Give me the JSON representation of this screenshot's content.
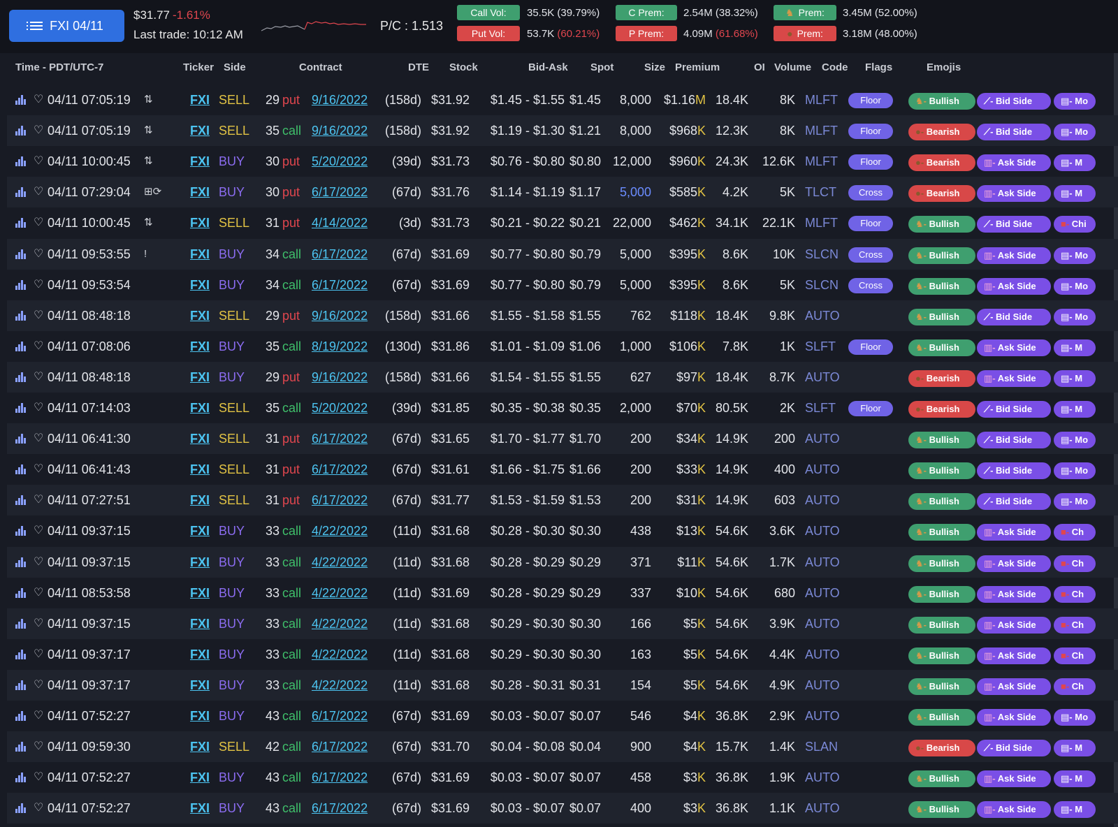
{
  "header": {
    "symbol_button": "FXI 04/11",
    "price": "$31.77",
    "change": "-1.61%",
    "last_trade": "Last trade: 10:12 AM",
    "pc_ratio": "P/C : 1.513",
    "call_vol_label": "Call Vol:",
    "call_vol_value": "35.5K (39.79%)",
    "put_vol_label": "Put Vol:",
    "put_vol_value": "53.7K",
    "put_vol_pct": "(60.21%)",
    "c_prem_label": "C Prem:",
    "c_prem_value": "2.54M (38.32%)",
    "p_prem_label": "P Prem:",
    "p_prem_value": "4.09M",
    "p_prem_pct": "(61.68%)",
    "bull_prem_label": "Prem:",
    "bull_prem_value": "3.45M (52.00%)",
    "bear_prem_label": "Prem:",
    "bear_prem_value": "3.18M (48.00%)"
  },
  "columns": {
    "time": "Time - PDT/UTC-7",
    "ticker": "Ticker",
    "side": "Side",
    "contract": "Contract",
    "dte": "DTE",
    "stock": "Stock",
    "bid_ask": "Bid-Ask",
    "spot": "Spot",
    "size": "Size",
    "premium": "Premium",
    "oi": "OI",
    "volume": "Volume",
    "code": "Code",
    "flags": "Flags",
    "emojis": "Emojis"
  },
  "rows": [
    {
      "time": "04/11 07:05:19",
      "tflag": "⇅",
      "ticker": "FXI",
      "side": "SELL",
      "strike": "29",
      "type": "put",
      "exp": "9/16/2022",
      "dte": "(158d)",
      "stock": "$31.92",
      "bid_ask": "$1.45 - $1.55",
      "spot": "$1.45",
      "size": "8,000",
      "prem": "$1.16",
      "prem_unit": "M",
      "oi": "18.4K",
      "vol": "8K",
      "code": "MLFT",
      "flag": "Floor",
      "sentiment": "Bullish",
      "side_tag": "Bid Side",
      "more": "Mo"
    },
    {
      "time": "04/11 07:05:19",
      "tflag": "⇅",
      "ticker": "FXI",
      "side": "SELL",
      "strike": "35",
      "type": "call",
      "exp": "9/16/2022",
      "dte": "(158d)",
      "stock": "$31.92",
      "bid_ask": "$1.19 - $1.30",
      "spot": "$1.21",
      "size": "8,000",
      "prem": "$968",
      "prem_unit": "K",
      "oi": "12.3K",
      "vol": "8K",
      "code": "MLFT",
      "flag": "Floor",
      "sentiment": "Bearish",
      "side_tag": "Bid Side",
      "more": "Mo"
    },
    {
      "time": "04/11 10:00:45",
      "tflag": "⇅",
      "ticker": "FXI",
      "side": "BUY",
      "strike": "30",
      "type": "put",
      "exp": "5/20/2022",
      "dte": "(39d)",
      "stock": "$31.73",
      "bid_ask": "$0.76 - $0.80",
      "spot": "$0.80",
      "size": "12,000",
      "prem": "$960",
      "prem_unit": "K",
      "oi": "24.3K",
      "vol": "12.6K",
      "code": "MLFT",
      "flag": "Floor",
      "sentiment": "Bearish",
      "side_tag": "Ask Side",
      "more": "M"
    },
    {
      "time": "04/11 07:29:04",
      "tflag": "⊞⟳",
      "ticker": "FXI",
      "side": "BUY",
      "strike": "30",
      "type": "put",
      "exp": "6/17/2022",
      "dte": "(67d)",
      "stock": "$31.76",
      "bid_ask": "$1.14 - $1.19",
      "spot": "$1.17",
      "size": "5,000",
      "size_hi": true,
      "prem": "$585",
      "prem_unit": "K",
      "oi": "4.2K",
      "vol": "5K",
      "code": "TLCT",
      "flag": "Cross",
      "sentiment": "Bearish",
      "side_tag": "Ask Side",
      "more": "M"
    },
    {
      "time": "04/11 10:00:45",
      "tflag": "⇅",
      "ticker": "FXI",
      "side": "SELL",
      "strike": "31",
      "type": "put",
      "exp": "4/14/2022",
      "dte": "(3d)",
      "stock": "$31.73",
      "bid_ask": "$0.21 - $0.22",
      "spot": "$0.21",
      "size": "22,000",
      "prem": "$462",
      "prem_unit": "K",
      "oi": "34.1K",
      "vol": "22.1K",
      "code": "MLFT",
      "flag": "Floor",
      "sentiment": "Bullish",
      "side_tag": "Bid Side",
      "more": "Chi"
    },
    {
      "time": "04/11 09:53:55",
      "tflag": "!",
      "ticker": "FXI",
      "side": "BUY",
      "strike": "34",
      "type": "call",
      "exp": "6/17/2022",
      "dte": "(67d)",
      "stock": "$31.69",
      "bid_ask": "$0.77 - $0.80",
      "spot": "$0.79",
      "size": "5,000",
      "prem": "$395",
      "prem_unit": "K",
      "oi": "8.6K",
      "vol": "10K",
      "code": "SLCN",
      "flag": "Cross",
      "sentiment": "Bullish",
      "side_tag": "Ask Side",
      "more": "Mo"
    },
    {
      "time": "04/11 09:53:54",
      "tflag": "",
      "ticker": "FXI",
      "side": "BUY",
      "strike": "34",
      "type": "call",
      "exp": "6/17/2022",
      "dte": "(67d)",
      "stock": "$31.69",
      "bid_ask": "$0.77 - $0.80",
      "spot": "$0.79",
      "size": "5,000",
      "prem": "$395",
      "prem_unit": "K",
      "oi": "8.6K",
      "vol": "5K",
      "code": "SLCN",
      "flag": "Cross",
      "sentiment": "Bullish",
      "side_tag": "Ask Side",
      "more": "Mo"
    },
    {
      "time": "04/11 08:48:18",
      "tflag": "",
      "ticker": "FXI",
      "side": "SELL",
      "strike": "29",
      "type": "put",
      "exp": "9/16/2022",
      "dte": "(158d)",
      "stock": "$31.66",
      "bid_ask": "$1.55 - $1.58",
      "spot": "$1.55",
      "size": "762",
      "prem": "$118",
      "prem_unit": "K",
      "oi": "18.4K",
      "vol": "9.8K",
      "code": "AUTO",
      "flag": "",
      "sentiment": "Bullish",
      "side_tag": "Bid Side",
      "more": "Mo"
    },
    {
      "time": "04/11 07:08:06",
      "tflag": "",
      "ticker": "FXI",
      "side": "BUY",
      "strike": "35",
      "type": "call",
      "exp": "8/19/2022",
      "dte": "(130d)",
      "stock": "$31.86",
      "bid_ask": "$1.01 - $1.09",
      "spot": "$1.06",
      "size": "1,000",
      "prem": "$106",
      "prem_unit": "K",
      "oi": "7.8K",
      "vol": "1K",
      "code": "SLFT",
      "flag": "Floor",
      "sentiment": "Bullish",
      "side_tag": "Ask Side",
      "more": "M"
    },
    {
      "time": "04/11 08:48:18",
      "tflag": "",
      "ticker": "FXI",
      "side": "BUY",
      "strike": "29",
      "type": "put",
      "exp": "9/16/2022",
      "dte": "(158d)",
      "stock": "$31.66",
      "bid_ask": "$1.54 - $1.55",
      "spot": "$1.55",
      "size": "627",
      "prem": "$97",
      "prem_unit": "K",
      "oi": "18.4K",
      "vol": "8.7K",
      "code": "AUTO",
      "flag": "",
      "sentiment": "Bearish",
      "side_tag": "Ask Side",
      "more": "M"
    },
    {
      "time": "04/11 07:14:03",
      "tflag": "",
      "ticker": "FXI",
      "side": "SELL",
      "strike": "35",
      "type": "call",
      "exp": "5/20/2022",
      "dte": "(39d)",
      "stock": "$31.85",
      "bid_ask": "$0.35 - $0.38",
      "spot": "$0.35",
      "size": "2,000",
      "prem": "$70",
      "prem_unit": "K",
      "oi": "80.5K",
      "vol": "2K",
      "code": "SLFT",
      "flag": "Floor",
      "sentiment": "Bearish",
      "side_tag": "Bid Side",
      "more": "M"
    },
    {
      "time": "04/11 06:41:30",
      "tflag": "",
      "ticker": "FXI",
      "side": "SELL",
      "strike": "31",
      "type": "put",
      "exp": "6/17/2022",
      "dte": "(67d)",
      "stock": "$31.65",
      "bid_ask": "$1.70 - $1.77",
      "spot": "$1.70",
      "size": "200",
      "prem": "$34",
      "prem_unit": "K",
      "oi": "14.9K",
      "vol": "200",
      "code": "AUTO",
      "flag": "",
      "sentiment": "Bullish",
      "side_tag": "Bid Side",
      "more": "Mo"
    },
    {
      "time": "04/11 06:41:43",
      "tflag": "",
      "ticker": "FXI",
      "side": "SELL",
      "strike": "31",
      "type": "put",
      "exp": "6/17/2022",
      "dte": "(67d)",
      "stock": "$31.61",
      "bid_ask": "$1.66 - $1.75",
      "spot": "$1.66",
      "size": "200",
      "prem": "$33",
      "prem_unit": "K",
      "oi": "14.9K",
      "vol": "400",
      "code": "AUTO",
      "flag": "",
      "sentiment": "Bullish",
      "side_tag": "Bid Side",
      "more": "Mo"
    },
    {
      "time": "04/11 07:27:51",
      "tflag": "",
      "ticker": "FXI",
      "side": "SELL",
      "strike": "31",
      "type": "put",
      "exp": "6/17/2022",
      "dte": "(67d)",
      "stock": "$31.77",
      "bid_ask": "$1.53 - $1.59",
      "spot": "$1.53",
      "size": "200",
      "prem": "$31",
      "prem_unit": "K",
      "oi": "14.9K",
      "vol": "603",
      "code": "AUTO",
      "flag": "",
      "sentiment": "Bullish",
      "side_tag": "Bid Side",
      "more": "Mo"
    },
    {
      "time": "04/11 09:37:15",
      "tflag": "",
      "ticker": "FXI",
      "side": "BUY",
      "strike": "33",
      "type": "call",
      "exp": "4/22/2022",
      "dte": "(11d)",
      "stock": "$31.68",
      "bid_ask": "$0.28 - $0.30",
      "spot": "$0.30",
      "size": "438",
      "prem": "$13",
      "prem_unit": "K",
      "oi": "54.6K",
      "vol": "3.6K",
      "code": "AUTO",
      "flag": "",
      "sentiment": "Bullish",
      "side_tag": "Ask Side",
      "more": "Ch"
    },
    {
      "time": "04/11 09:37:15",
      "tflag": "",
      "ticker": "FXI",
      "side": "BUY",
      "strike": "33",
      "type": "call",
      "exp": "4/22/2022",
      "dte": "(11d)",
      "stock": "$31.68",
      "bid_ask": "$0.28 - $0.29",
      "spot": "$0.29",
      "size": "371",
      "prem": "$11",
      "prem_unit": "K",
      "oi": "54.6K",
      "vol": "1.7K",
      "code": "AUTO",
      "flag": "",
      "sentiment": "Bullish",
      "side_tag": "Ask Side",
      "more": "Ch"
    },
    {
      "time": "04/11 08:53:58",
      "tflag": "",
      "ticker": "FXI",
      "side": "BUY",
      "strike": "33",
      "type": "call",
      "exp": "4/22/2022",
      "dte": "(11d)",
      "stock": "$31.69",
      "bid_ask": "$0.28 - $0.29",
      "spot": "$0.29",
      "size": "337",
      "prem": "$10",
      "prem_unit": "K",
      "oi": "54.6K",
      "vol": "680",
      "code": "AUTO",
      "flag": "",
      "sentiment": "Bullish",
      "side_tag": "Ask Side",
      "more": "Ch"
    },
    {
      "time": "04/11 09:37:15",
      "tflag": "",
      "ticker": "FXI",
      "side": "BUY",
      "strike": "33",
      "type": "call",
      "exp": "4/22/2022",
      "dte": "(11d)",
      "stock": "$31.68",
      "bid_ask": "$0.29 - $0.30",
      "spot": "$0.30",
      "size": "166",
      "prem": "$5",
      "prem_unit": "K",
      "oi": "54.6K",
      "vol": "3.9K",
      "code": "AUTO",
      "flag": "",
      "sentiment": "Bullish",
      "side_tag": "Ask Side",
      "more": "Ch"
    },
    {
      "time": "04/11 09:37:17",
      "tflag": "",
      "ticker": "FXI",
      "side": "BUY",
      "strike": "33",
      "type": "call",
      "exp": "4/22/2022",
      "dte": "(11d)",
      "stock": "$31.68",
      "bid_ask": "$0.29 - $0.30",
      "spot": "$0.30",
      "size": "163",
      "prem": "$5",
      "prem_unit": "K",
      "oi": "54.6K",
      "vol": "4.4K",
      "code": "AUTO",
      "flag": "",
      "sentiment": "Bullish",
      "side_tag": "Ask Side",
      "more": "Ch"
    },
    {
      "time": "04/11 09:37:17",
      "tflag": "",
      "ticker": "FXI",
      "side": "BUY",
      "strike": "33",
      "type": "call",
      "exp": "4/22/2022",
      "dte": "(11d)",
      "stock": "$31.68",
      "bid_ask": "$0.28 - $0.31",
      "spot": "$0.31",
      "size": "154",
      "prem": "$5",
      "prem_unit": "K",
      "oi": "54.6K",
      "vol": "4.9K",
      "code": "AUTO",
      "flag": "",
      "sentiment": "Bullish",
      "side_tag": "Ask Side",
      "more": "Ch"
    },
    {
      "time": "04/11 07:52:27",
      "tflag": "",
      "ticker": "FXI",
      "side": "BUY",
      "strike": "43",
      "type": "call",
      "exp": "6/17/2022",
      "dte": "(67d)",
      "stock": "$31.69",
      "bid_ask": "$0.03 - $0.07",
      "spot": "$0.07",
      "size": "546",
      "prem": "$4",
      "prem_unit": "K",
      "oi": "36.8K",
      "vol": "2.9K",
      "code": "AUTO",
      "flag": "",
      "sentiment": "Bullish",
      "side_tag": "Ask Side",
      "more": "Mo"
    },
    {
      "time": "04/11 09:59:30",
      "tflag": "",
      "ticker": "FXI",
      "side": "SELL",
      "strike": "42",
      "type": "call",
      "exp": "6/17/2022",
      "dte": "(67d)",
      "stock": "$31.70",
      "bid_ask": "$0.04 - $0.08",
      "spot": "$0.04",
      "size": "900",
      "prem": "$4",
      "prem_unit": "K",
      "oi": "15.7K",
      "vol": "1.4K",
      "code": "SLAN",
      "flag": "",
      "sentiment": "Bearish",
      "side_tag": "Bid Side",
      "more": "M"
    },
    {
      "time": "04/11 07:52:27",
      "tflag": "",
      "ticker": "FXI",
      "side": "BUY",
      "strike": "43",
      "type": "call",
      "exp": "6/17/2022",
      "dte": "(67d)",
      "stock": "$31.69",
      "bid_ask": "$0.03 - $0.07",
      "spot": "$0.07",
      "size": "458",
      "prem": "$3",
      "prem_unit": "K",
      "oi": "36.8K",
      "vol": "1.9K",
      "code": "AUTO",
      "flag": "",
      "sentiment": "Bullish",
      "side_tag": "Ask Side",
      "more": "M"
    },
    {
      "time": "04/11 07:52:27",
      "tflag": "",
      "ticker": "FXI",
      "side": "BUY",
      "strike": "43",
      "type": "call",
      "exp": "6/17/2022",
      "dte": "(67d)",
      "stock": "$31.69",
      "bid_ask": "$0.03 - $0.07",
      "spot": "$0.07",
      "size": "400",
      "prem": "$3",
      "prem_unit": "K",
      "oi": "36.8K",
      "vol": "1.1K",
      "code": "AUTO",
      "flag": "",
      "sentiment": "Bullish",
      "side_tag": "Ask Side",
      "more": "M"
    }
  ],
  "colors": {
    "accent_blue": "#2f6fe0",
    "bullish": "#3f9f6f",
    "bearish": "#d84848",
    "pill_purple": "#7063e6",
    "sell": "#e2c344",
    "buy": "#8b6cf0",
    "put": "#e0464e",
    "call": "#3fbf6a"
  },
  "icons": {
    "row_chart": "bar-chart-icon",
    "row_fav": "heart-icon",
    "menu": "list-icon"
  }
}
